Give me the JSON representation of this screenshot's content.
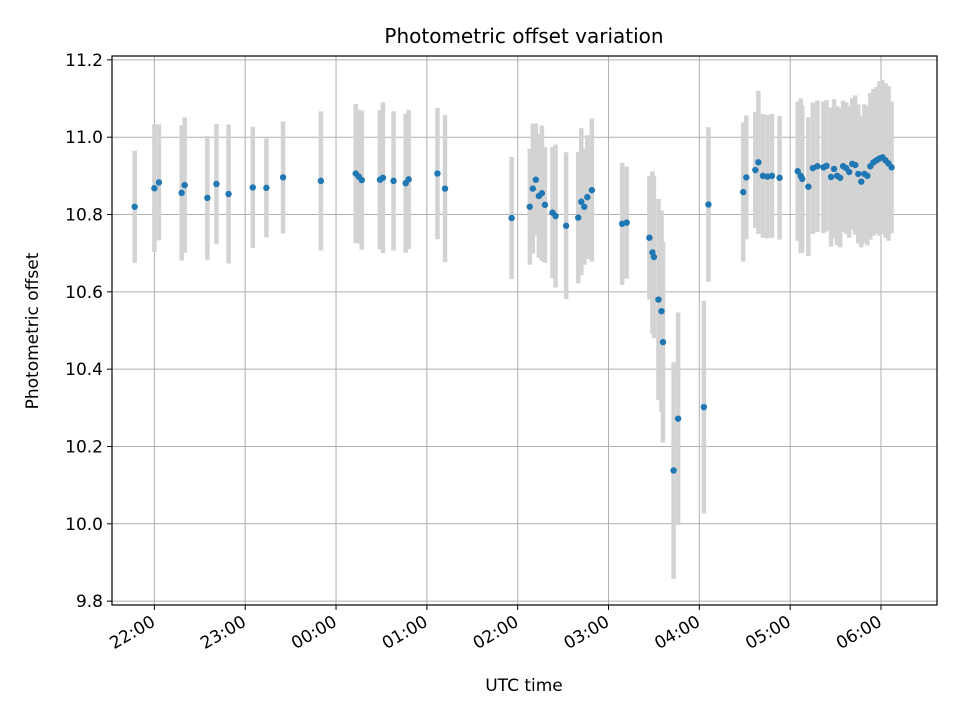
{
  "chart_data": {
    "type": "scatter",
    "title": "Photometric offset variation",
    "xlabel": "UTC time",
    "ylabel": "Photometric offset",
    "xlim": [
      "21:32",
      "06:37"
    ],
    "ylim": [
      9.79,
      11.21
    ],
    "x_ticks": [
      "22:00",
      "23:00",
      "00:00",
      "01:00",
      "02:00",
      "03:00",
      "04:00",
      "05:00",
      "06:00"
    ],
    "y_ticks": [
      9.8,
      10.0,
      10.2,
      10.4,
      10.6,
      10.8,
      11.0,
      11.2
    ],
    "y_tick_labels": [
      "9.8",
      "10.0",
      "10.2",
      "10.4",
      "10.6",
      "10.8",
      "11.0",
      "11.2"
    ],
    "grid": true,
    "colors": {
      "points": "#1f77b4",
      "errorbars": "#d3d3d3",
      "grid": "#b0b0b0"
    },
    "series": [
      {
        "x": [
          "21:47",
          "22:00",
          "22:03",
          "22:18",
          "22:20",
          "22:35",
          "22:41",
          "22:49",
          "23:05",
          "23:14",
          "23:25",
          "23:50",
          "00:13",
          "00:15",
          "00:17",
          "00:29",
          "00:31",
          "00:38",
          "00:46",
          "00:48",
          "01:07",
          "01:12",
          "01:56",
          "02:08",
          "02:10",
          "02:12",
          "02:14",
          "02:16",
          "02:18",
          "02:23",
          "02:25",
          "02:32",
          "02:40",
          "02:42",
          "02:44",
          "02:46",
          "02:49",
          "03:09",
          "03:12",
          "03:27",
          "03:29",
          "03:30",
          "03:33",
          "03:35",
          "03:36",
          "03:43",
          "03:46",
          "04:03",
          "04:06",
          "04:29",
          "04:31",
          "04:37",
          "04:39",
          "04:42",
          "04:45",
          "04:48",
          "04:53",
          "05:05",
          "05:07",
          "05:08",
          "05:12",
          "05:15",
          "05:18",
          "05:22",
          "05:24",
          "05:27",
          "05:29",
          "05:31",
          "05:33",
          "05:35",
          "05:37",
          "05:39",
          "05:41",
          "05:43",
          "05:45",
          "05:47",
          "05:49",
          "05:51",
          "05:53",
          "05:55",
          "05:57",
          "05:59",
          "06:01",
          "06:03",
          "06:05",
          "06:07"
        ],
        "y": [
          10.82,
          10.868,
          10.883,
          10.856,
          10.876,
          10.843,
          10.879,
          10.853,
          10.87,
          10.869,
          10.896,
          10.887,
          10.906,
          10.898,
          10.889,
          10.89,
          10.895,
          10.887,
          10.881,
          10.891,
          10.906,
          10.867,
          10.791,
          10.82,
          10.867,
          10.89,
          10.848,
          10.855,
          10.825,
          10.805,
          10.796,
          10.771,
          10.792,
          10.833,
          10.82,
          10.845,
          10.863,
          10.776,
          10.779,
          10.74,
          10.702,
          10.69,
          10.58,
          10.55,
          10.47,
          10.138,
          10.272,
          10.302,
          10.826,
          10.858,
          10.896,
          10.915,
          10.935,
          10.9,
          10.898,
          10.9,
          10.895,
          10.912,
          10.9,
          10.892,
          10.872,
          10.92,
          10.925,
          10.922,
          10.926,
          10.897,
          10.918,
          10.9,
          10.895,
          10.925,
          10.92,
          10.91,
          10.931,
          10.928,
          10.905,
          10.885,
          10.905,
          10.9,
          10.925,
          10.935,
          10.94,
          10.945,
          10.948,
          10.94,
          10.932,
          10.922
        ],
        "err": [
          0.145,
          0.165,
          0.15,
          0.175,
          0.175,
          0.16,
          0.155,
          0.18,
          0.157,
          0.128,
          0.145,
          0.18,
          0.18,
          0.173,
          0.18,
          0.18,
          0.195,
          0.18,
          0.18,
          0.18,
          0.17,
          0.19,
          0.158,
          0.15,
          0.168,
          0.145,
          0.16,
          0.175,
          0.15,
          0.17,
          0.185,
          0.19,
          0.17,
          0.19,
          0.15,
          0.16,
          0.185,
          0.158,
          0.145,
          0.16,
          0.21,
          0.21,
          0.26,
          0.26,
          0.26,
          0.28,
          0.275,
          0.275,
          0.2,
          0.18,
          0.16,
          0.15,
          0.185,
          0.16,
          0.16,
          0.16,
          0.16,
          0.18,
          0.2,
          0.19,
          0.18,
          0.17,
          0.17,
          0.17,
          0.17,
          0.18,
          0.18,
          0.18,
          0.18,
          0.17,
          0.17,
          0.17,
          0.17,
          0.18,
          0.18,
          0.17,
          0.18,
          0.18,
          0.19,
          0.19,
          0.19,
          0.2,
          0.2,
          0.2,
          0.2,
          0.17
        ]
      }
    ]
  }
}
